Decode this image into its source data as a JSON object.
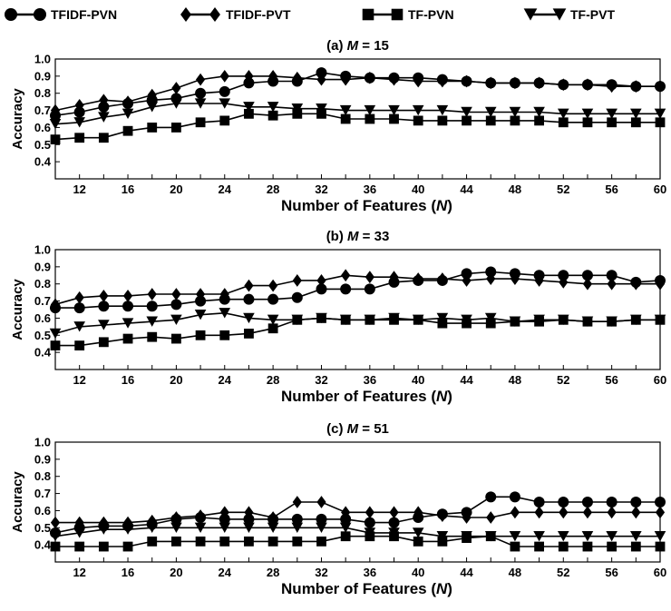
{
  "legend": [
    {
      "name": "TFIDF-PVN",
      "marker": "circle"
    },
    {
      "name": "TFIDF-PVT",
      "marker": "diamond"
    },
    {
      "name": "TF-PVN",
      "marker": "square"
    },
    {
      "name": "TF-PVT",
      "marker": "triangle-down"
    }
  ],
  "chart_data": [
    {
      "type": "line",
      "title_prefix": "(a) ",
      "title_var": "M",
      "title_suffix": " = 15",
      "xlabel_prefix": "Number of Features (",
      "xlabel_var": "N",
      "xlabel_suffix": ")",
      "ylabel": "Accuracy",
      "xlim": [
        10,
        60
      ],
      "ylim": [
        0.3,
        1.0
      ],
      "yticks": [
        "0.4",
        "0.5",
        "0.6",
        "0.7",
        "0.8",
        "0.9",
        "1.0"
      ],
      "xticks": [
        "12",
        "16",
        "20",
        "24",
        "28",
        "32",
        "36",
        "40",
        "44",
        "48",
        "52",
        "56",
        "60"
      ],
      "x": [
        10,
        12,
        14,
        16,
        18,
        20,
        22,
        24,
        26,
        28,
        30,
        32,
        34,
        36,
        38,
        40,
        42,
        44,
        46,
        48,
        50,
        52,
        54,
        56,
        58,
        60
      ],
      "series": [
        {
          "name": "TFIDF-PVN",
          "values": [
            0.67,
            0.69,
            0.72,
            0.74,
            0.76,
            0.77,
            0.8,
            0.81,
            0.86,
            0.87,
            0.87,
            0.92,
            0.9,
            0.89,
            0.89,
            0.89,
            0.88,
            0.87,
            0.86,
            0.86,
            0.86,
            0.85,
            0.85,
            0.85,
            0.84,
            0.84
          ]
        },
        {
          "name": "TFIDF-PVT",
          "values": [
            0.7,
            0.73,
            0.76,
            0.75,
            0.79,
            0.83,
            0.88,
            0.9,
            0.9,
            0.9,
            0.89,
            0.88,
            0.88,
            0.89,
            0.88,
            0.87,
            0.87,
            0.87,
            0.86,
            0.86,
            0.86,
            0.85,
            0.85,
            0.84,
            0.84,
            0.84
          ]
        },
        {
          "name": "TF-PVN",
          "values": [
            0.53,
            0.54,
            0.54,
            0.58,
            0.6,
            0.6,
            0.63,
            0.64,
            0.68,
            0.67,
            0.68,
            0.68,
            0.65,
            0.65,
            0.65,
            0.64,
            0.64,
            0.64,
            0.64,
            0.64,
            0.64,
            0.63,
            0.63,
            0.63,
            0.63,
            0.63
          ]
        },
        {
          "name": "TF-PVT",
          "values": [
            0.62,
            0.63,
            0.66,
            0.68,
            0.72,
            0.74,
            0.74,
            0.74,
            0.72,
            0.72,
            0.71,
            0.71,
            0.7,
            0.7,
            0.7,
            0.7,
            0.7,
            0.69,
            0.69,
            0.69,
            0.69,
            0.68,
            0.68,
            0.68,
            0.68,
            0.68
          ]
        }
      ]
    },
    {
      "type": "line",
      "title_prefix": "(b) ",
      "title_var": "M",
      "title_suffix": " = 33",
      "xlabel_prefix": "Number of Features (",
      "xlabel_var": "N",
      "xlabel_suffix": ")",
      "ylabel": "Accuracy",
      "xlim": [
        10,
        60
      ],
      "ylim": [
        0.3,
        1.0
      ],
      "yticks": [
        "0.4",
        "0.5",
        "0.6",
        "0.7",
        "0.8",
        "0.9",
        "1.0"
      ],
      "xticks": [
        "12",
        "16",
        "20",
        "24",
        "28",
        "32",
        "36",
        "40",
        "44",
        "48",
        "52",
        "56",
        "60"
      ],
      "x": [
        10,
        12,
        14,
        16,
        18,
        20,
        22,
        24,
        26,
        28,
        30,
        32,
        34,
        36,
        38,
        40,
        42,
        44,
        46,
        48,
        50,
        52,
        54,
        56,
        58,
        60
      ],
      "series": [
        {
          "name": "TFIDF-PVN",
          "values": [
            0.66,
            0.66,
            0.67,
            0.67,
            0.67,
            0.68,
            0.7,
            0.71,
            0.71,
            0.71,
            0.72,
            0.77,
            0.77,
            0.77,
            0.81,
            0.82,
            0.82,
            0.86,
            0.87,
            0.86,
            0.85,
            0.85,
            0.85,
            0.85,
            0.81,
            0.82
          ]
        },
        {
          "name": "TFIDF-PVT",
          "values": [
            0.68,
            0.72,
            0.73,
            0.73,
            0.74,
            0.74,
            0.74,
            0.74,
            0.79,
            0.79,
            0.82,
            0.82,
            0.85,
            0.84,
            0.84,
            0.83,
            0.83,
            0.82,
            0.83,
            0.83,
            0.82,
            0.81,
            0.8,
            0.8,
            0.8,
            0.8
          ]
        },
        {
          "name": "TF-PVN",
          "values": [
            0.44,
            0.44,
            0.46,
            0.48,
            0.49,
            0.48,
            0.5,
            0.5,
            0.51,
            0.54,
            0.59,
            0.6,
            0.59,
            0.59,
            0.59,
            0.59,
            0.57,
            0.57,
            0.57,
            0.58,
            0.58,
            0.59,
            0.58,
            0.58,
            0.59,
            0.59
          ]
        },
        {
          "name": "TF-PVT",
          "values": [
            0.51,
            0.55,
            0.56,
            0.57,
            0.58,
            0.59,
            0.62,
            0.63,
            0.6,
            0.59,
            0.59,
            0.6,
            0.59,
            0.59,
            0.6,
            0.59,
            0.6,
            0.59,
            0.6,
            0.58,
            0.59,
            0.59,
            0.58,
            0.58,
            0.59,
            0.59
          ]
        }
      ]
    },
    {
      "type": "line",
      "title_prefix": "(c) ",
      "title_var": "M",
      "title_suffix": " = 51",
      "xlabel_prefix": "Number of Features (",
      "xlabel_var": "N",
      "xlabel_suffix": ")",
      "ylabel": "Accuracy",
      "xlim": [
        10,
        60
      ],
      "ylim": [
        0.3,
        1.0
      ],
      "yticks": [
        "0.4",
        "0.5",
        "0.6",
        "0.7",
        "0.8",
        "0.9",
        "1.0"
      ],
      "xticks": [
        "12",
        "16",
        "20",
        "24",
        "28",
        "32",
        "36",
        "40",
        "44",
        "48",
        "52",
        "56",
        "60"
      ],
      "x": [
        10,
        12,
        14,
        16,
        18,
        20,
        22,
        24,
        26,
        28,
        30,
        32,
        34,
        36,
        38,
        40,
        42,
        44,
        46,
        48,
        50,
        52,
        54,
        56,
        58,
        60
      ],
      "series": [
        {
          "name": "TFIDF-PVN",
          "values": [
            0.47,
            0.5,
            0.51,
            0.51,
            0.52,
            0.55,
            0.56,
            0.55,
            0.55,
            0.55,
            0.55,
            0.55,
            0.55,
            0.53,
            0.53,
            0.56,
            0.58,
            0.59,
            0.68,
            0.68,
            0.65,
            0.65,
            0.65,
            0.65,
            0.65,
            0.65
          ]
        },
        {
          "name": "TFIDF-PVT",
          "values": [
            0.53,
            0.53,
            0.53,
            0.53,
            0.54,
            0.56,
            0.57,
            0.59,
            0.59,
            0.56,
            0.65,
            0.65,
            0.59,
            0.59,
            0.59,
            0.59,
            0.57,
            0.56,
            0.56,
            0.59,
            0.59,
            0.59,
            0.59,
            0.59,
            0.59,
            0.59
          ]
        },
        {
          "name": "TF-PVN",
          "values": [
            0.39,
            0.39,
            0.39,
            0.39,
            0.42,
            0.42,
            0.42,
            0.42,
            0.42,
            0.42,
            0.42,
            0.42,
            0.45,
            0.45,
            0.45,
            0.42,
            0.42,
            0.44,
            0.45,
            0.39,
            0.39,
            0.39,
            0.39,
            0.39,
            0.39,
            0.39
          ]
        },
        {
          "name": "TF-PVT",
          "values": [
            0.45,
            0.47,
            0.49,
            0.49,
            0.5,
            0.5,
            0.5,
            0.5,
            0.5,
            0.5,
            0.5,
            0.5,
            0.5,
            0.47,
            0.47,
            0.47,
            0.45,
            0.45,
            0.45,
            0.45,
            0.45,
            0.45,
            0.45,
            0.45,
            0.45,
            0.45
          ]
        }
      ]
    }
  ]
}
